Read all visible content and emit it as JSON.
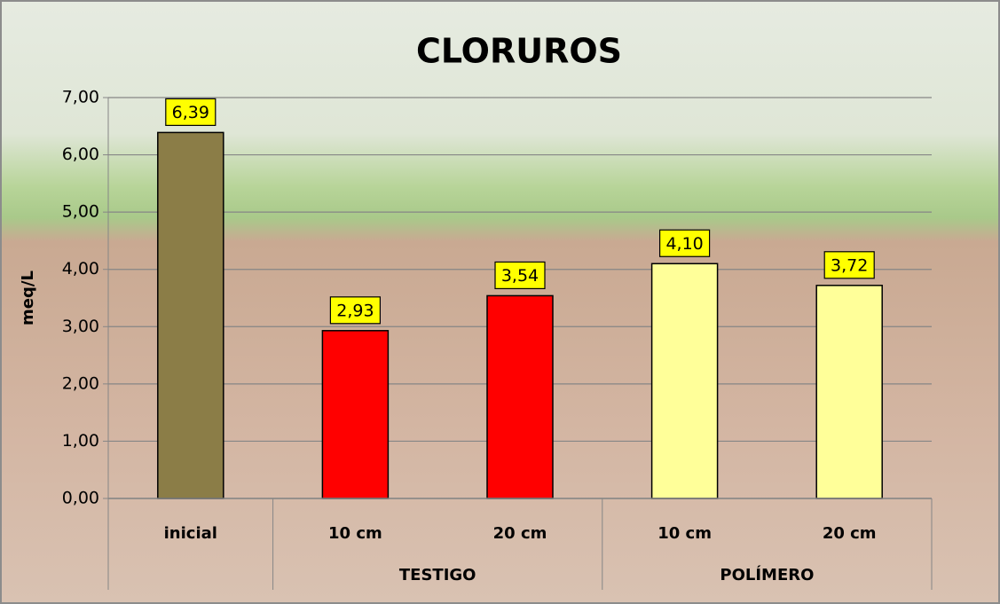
{
  "chart_data": {
    "type": "bar",
    "title": "CLORUROS",
    "y_label": "meq/L",
    "categories": [
      "inicial",
      "10 cm",
      "20 cm",
      "10 cm",
      "20 cm"
    ],
    "groups": [
      "TESTIGO",
      "POLÍMERO"
    ],
    "values": [
      6.39,
      2.93,
      3.54,
      4.1,
      3.72
    ],
    "value_labels": [
      "6,39",
      "2,93",
      "3,54",
      "4,10",
      "3,72"
    ],
    "colors": [
      "#8b7d47",
      "#ff0000",
      "#ff0000",
      "#ffff99",
      "#ffff99"
    ],
    "label_box_color": "#ffff00",
    "ylim": [
      0,
      7
    ],
    "yticks": [
      {
        "value": 0,
        "label": "0,00"
      },
      {
        "value": 1,
        "label": "1,00"
      },
      {
        "value": 2,
        "label": "2,00"
      },
      {
        "value": 3,
        "label": "3,00"
      },
      {
        "value": 4,
        "label": "4,00"
      },
      {
        "value": 5,
        "label": "5,00"
      },
      {
        "value": 6,
        "label": "6,00"
      },
      {
        "value": 7,
        "label": "7,00"
      }
    ],
    "grid": true
  }
}
